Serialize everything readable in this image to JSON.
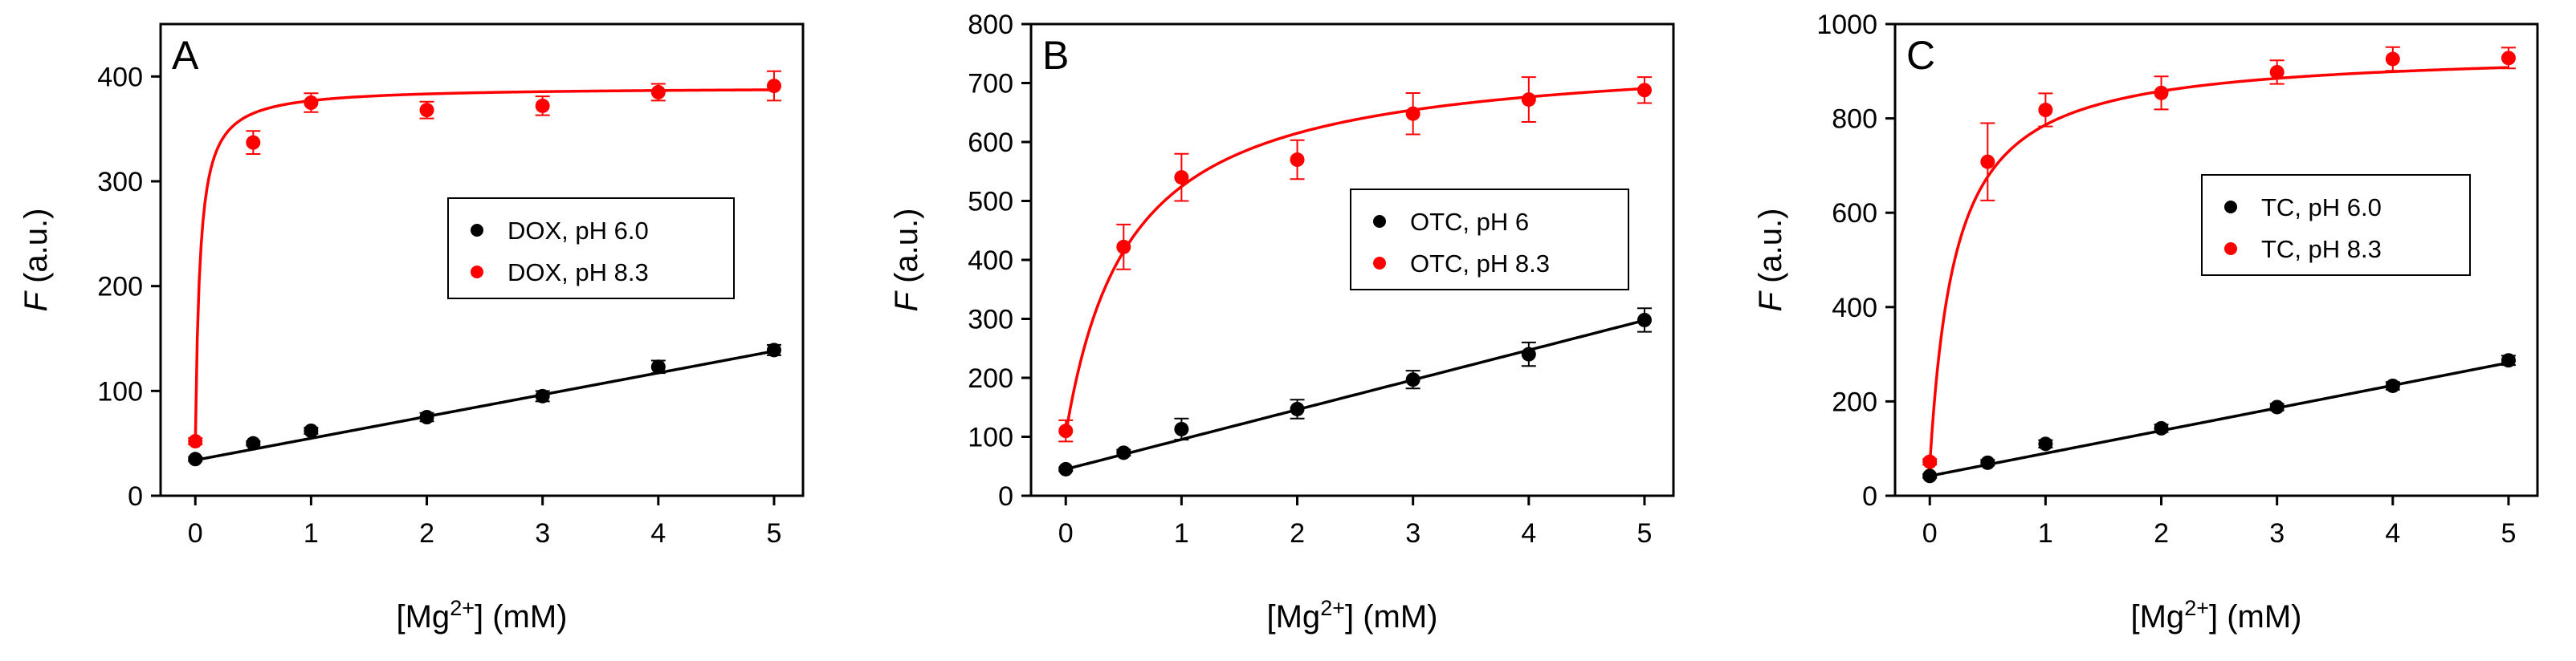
{
  "figure": {
    "panels": [
      "A",
      "B",
      "C"
    ]
  },
  "colors": {
    "red": "#ff0000",
    "black": "#000000",
    "axis": "#000000",
    "background": "#ffffff"
  },
  "chart_data": [
    {
      "type": "scatter",
      "panel_label": "A",
      "xlabel_parts": [
        "[Mg",
        "2+",
        "] (mM)"
      ],
      "ylabel_parts": [
        "F",
        " (a.u.)"
      ],
      "xlim": [
        -0.3,
        5.25
      ],
      "ylim": [
        0,
        450
      ],
      "xticks": [
        0,
        1,
        2,
        3,
        4,
        5
      ],
      "yticks": [
        0,
        100,
        200,
        300,
        400
      ],
      "x": [
        0,
        0.5,
        1,
        2,
        3,
        4,
        5
      ],
      "series": [
        {
          "name": "DOX, pH 6.0",
          "color": "#000000",
          "values": [
            35,
            50,
            62,
            75,
            95,
            123,
            139
          ],
          "errors": [
            2,
            2,
            3,
            4,
            5,
            6,
            5
          ],
          "fit": {
            "kind": "linear",
            "slope": 20.8,
            "intercept": 34
          }
        },
        {
          "name": "DOX, pH 8.3",
          "color": "#ff0000",
          "values": [
            52,
            337,
            375,
            368,
            372,
            385,
            391
          ],
          "errors": [
            3,
            11,
            9,
            8,
            9,
            8,
            14
          ],
          "fit": {
            "kind": "hyperbolic",
            "f0": 50,
            "fmax": 340,
            "kd": 0.04
          }
        }
      ],
      "legend_position": "center-right"
    },
    {
      "type": "scatter",
      "panel_label": "B",
      "xlabel_parts": [
        "[Mg",
        "2+",
        "] (mM)"
      ],
      "ylabel_parts": [
        "F",
        " (a.u.)"
      ],
      "xlim": [
        -0.3,
        5.25
      ],
      "ylim": [
        0,
        800
      ],
      "xticks": [
        0,
        1,
        2,
        3,
        4,
        5
      ],
      "yticks": [
        0,
        100,
        200,
        300,
        400,
        500,
        600,
        700,
        800
      ],
      "x": [
        0,
        0.5,
        1,
        2,
        3,
        4,
        5
      ],
      "series": [
        {
          "name": "OTC, pH 6",
          "color": "#000000",
          "values": [
            45,
            73,
            113,
            147,
            197,
            240,
            298
          ],
          "errors": [
            3,
            5,
            18,
            16,
            15,
            20,
            20
          ],
          "fit": {
            "kind": "linear",
            "slope": 50.5,
            "intercept": 45
          }
        },
        {
          "name": "OTC, pH 8.3",
          "color": "#ff0000",
          "values": [
            110,
            422,
            540,
            570,
            648,
            672,
            688
          ],
          "errors": [
            18,
            38,
            40,
            33,
            35,
            38,
            22
          ],
          "fit": {
            "kind": "hyperbolic",
            "f0": 105,
            "fmax": 650,
            "kd": 0.55
          }
        }
      ],
      "legend_position": "center-right"
    },
    {
      "type": "scatter",
      "panel_label": "C",
      "xlabel_parts": [
        "[Mg",
        "2+",
        "] (mM)"
      ],
      "ylabel_parts": [
        "F",
        " (a.u.)"
      ],
      "xlim": [
        -0.3,
        5.25
      ],
      "ylim": [
        0,
        1000
      ],
      "xticks": [
        0,
        1,
        2,
        3,
        4,
        5
      ],
      "yticks": [
        0,
        200,
        400,
        600,
        800,
        1000
      ],
      "x": [
        0,
        0.5,
        1,
        2,
        3,
        4,
        5
      ],
      "series": [
        {
          "name": "TC, pH 6.0",
          "color": "#000000",
          "values": [
            42,
            70,
            110,
            143,
            188,
            233,
            287
          ],
          "errors": [
            4,
            6,
            8,
            8,
            7,
            8,
            10
          ],
          "fit": {
            "kind": "linear",
            "slope": 48,
            "intercept": 42
          }
        },
        {
          "name": "TC, pH 8.3",
          "color": "#ff0000",
          "values": [
            72,
            708,
            818,
            854,
            898,
            926,
            928
          ],
          "errors": [
            6,
            82,
            35,
            35,
            25,
            25,
            22
          ],
          "fit": {
            "kind": "hyperbolic",
            "f0": 65,
            "fmax": 880,
            "kd": 0.22
          }
        }
      ],
      "legend_position": "center-right"
    }
  ]
}
